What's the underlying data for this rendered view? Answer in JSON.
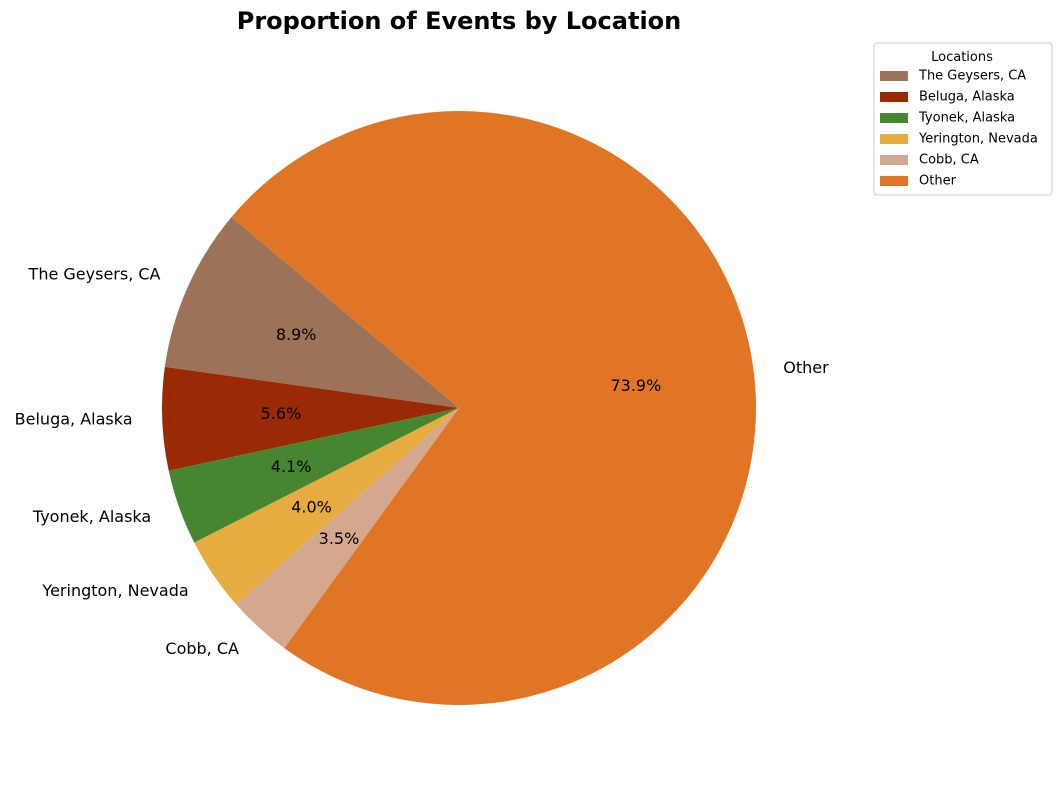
{
  "chart_data": {
    "type": "pie",
    "title": "Proportion of Events by Location",
    "categories": [
      "The Geysers, CA",
      "Beluga, Alaska",
      "Tyonek, Alaska",
      "Yerington, Nevada",
      "Cobb, CA",
      "Other"
    ],
    "values": [
      8.9,
      5.6,
      4.1,
      4.0,
      3.5,
      73.9
    ],
    "percent_labels": [
      "8.9%",
      "5.6%",
      "4.1%",
      "4.0%",
      "3.5%",
      "73.9%"
    ],
    "colors": [
      "#9c7258",
      "#9a2a05",
      "#468630",
      "#e6ac40",
      "#d4a88e",
      "#e07526"
    ],
    "start_angle_deg": 140,
    "direction": "counterclockwise",
    "legend": {
      "title": "Locations",
      "placement": "top-right, outside plot"
    }
  }
}
